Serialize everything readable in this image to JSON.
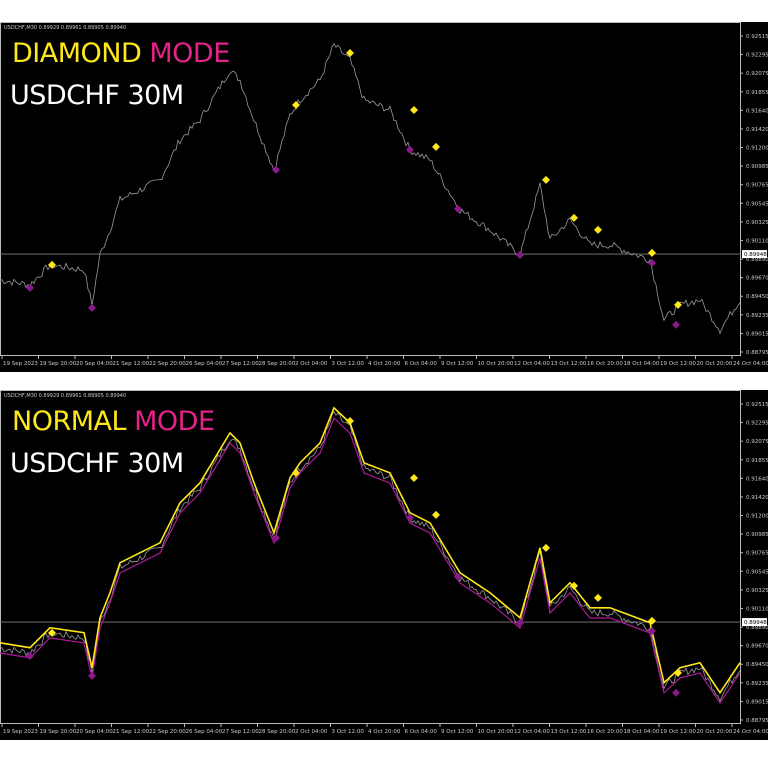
{
  "panels": [
    {
      "header": "USDCHF,M30  0.89929 0.89961 0.89905 0.89940",
      "mode_word": "DIAMOND",
      "mode_suffix": "MODE",
      "subtitle": "USDCHF 30M",
      "show_lines": false
    },
    {
      "header": "USDCHF,M30  0.89929 0.89961 0.89905 0.89940",
      "mode_word": "NORMAL",
      "mode_suffix": "MODE",
      "subtitle": "USDCHF 30M",
      "show_lines": true
    }
  ],
  "colors": {
    "title_yellow": "#ffe81a",
    "title_magenta": "#e6218a",
    "price": "#9a9a9a",
    "diamond_high": "#ffe81a",
    "diamond_low": "#8a1a8a",
    "band_upper": "#ffe81a",
    "band_lower": "#b0189a",
    "current_line": "#808080"
  },
  "chart_data": {
    "type": "line",
    "symbol": "USDCHF",
    "timeframe": "M30",
    "current_price": "0.89948",
    "ylim": [
      0.88795,
      0.92515
    ],
    "y_ticks": [
      "0.92515",
      "0.92295",
      "0.92075",
      "0.91855",
      "0.91640",
      "0.91420",
      "0.91200",
      "0.90985",
      "0.90765",
      "0.90545",
      "0.90325",
      "0.90110",
      "0.89890",
      "0.89670",
      "0.89450",
      "0.89235",
      "0.89015",
      "0.88795"
    ],
    "x_ticks": [
      "19 Sep 2023",
      "19 Sep 20:00",
      "20 Sep 04:00",
      "21 Sep 12:00",
      "22 Sep 20:00",
      "26 Sep 04:00",
      "27 Sep 12:00",
      "28 Sep 20:00",
      "2 Oct 04:00",
      "3 Oct 12:00",
      "4 Oct 20:00",
      "6 Oct 04:00",
      "9 Oct 12:00",
      "10 Oct 20:00",
      "12 Oct 04:00",
      "13 Oct 12:00",
      "16 Oct 20:00",
      "18 Oct 04:00",
      "19 Oct 12:00",
      "20 Oct 20:00",
      "24 Oct 04:00"
    ],
    "price_path": [
      [
        0,
        0.89644
      ],
      [
        15,
        0.89586
      ],
      [
        25,
        0.89821
      ],
      [
        42,
        0.89762
      ],
      [
        46,
        0.8935
      ],
      [
        50,
        0.89939
      ],
      [
        55,
        0.90233
      ],
      [
        60,
        0.90586
      ],
      [
        80,
        0.90821
      ],
      [
        90,
        0.91291
      ],
      [
        100,
        0.91527
      ],
      [
        115,
        0.92115
      ],
      [
        120,
        0.91997
      ],
      [
        127,
        0.91527
      ],
      [
        137,
        0.90939
      ],
      [
        145,
        0.91586
      ],
      [
        150,
        0.91762
      ],
      [
        160,
        0.91997
      ],
      [
        167,
        0.92409
      ],
      [
        175,
        0.92233
      ],
      [
        182,
        0.91762
      ],
      [
        195,
        0.91644
      ],
      [
        205,
        0.91174
      ],
      [
        215,
        0.91056
      ],
      [
        230,
        0.90468
      ],
      [
        245,
        0.90233
      ],
      [
        260,
        0.89939
      ],
      [
        270,
        0.90762
      ],
      [
        275,
        0.90115
      ],
      [
        285,
        0.9035
      ],
      [
        295,
        0.90056
      ],
      [
        305,
        0.90056
      ],
      [
        325,
        0.8988
      ],
      [
        332,
        0.89174
      ],
      [
        340,
        0.8935
      ],
      [
        350,
        0.89409
      ],
      [
        360,
        0.89056
      ],
      [
        370,
        0.89409
      ]
    ],
    "diamonds_high": [
      [
        26,
        0.89821
      ],
      [
        148,
        0.91703
      ],
      [
        175,
        0.92315
      ],
      [
        207,
        0.91644
      ],
      [
        218,
        0.9121
      ],
      [
        273,
        0.90821
      ],
      [
        287,
        0.90374
      ],
      [
        299,
        0.90233
      ],
      [
        326,
        0.89962
      ],
      [
        339,
        0.8935
      ]
    ],
    "diamonds_low": [
      [
        15,
        0.8955
      ],
      [
        46,
        0.89315
      ],
      [
        138,
        0.90939
      ],
      [
        205,
        0.91174
      ],
      [
        229,
        0.9048
      ],
      [
        260,
        0.89939
      ],
      [
        326,
        0.89842
      ],
      [
        338,
        0.89116
      ]
    ]
  }
}
